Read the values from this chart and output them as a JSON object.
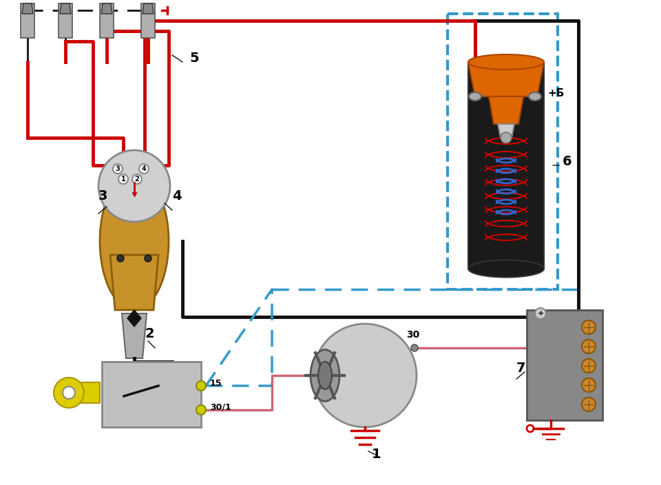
{
  "bg_color": "#f5f5f5",
  "title": "",
  "labels": {
    "1": [
      1,
      "1"
    ],
    "2": [
      2,
      "2"
    ],
    "3": [
      3,
      "3"
    ],
    "4": [
      4,
      "4"
    ],
    "5": [
      5,
      "5"
    ],
    "6": [
      6,
      "6"
    ],
    "7": [
      7,
      "7"
    ],
    "15": "15",
    "30_1": "30/1",
    "30": "30",
    "+B": "+Б"
  },
  "colors": {
    "red": "#cc0000",
    "black": "#111111",
    "blue": "#3366cc",
    "orange": "#cc6600",
    "yellow": "#ddcc00",
    "gray": "#888888",
    "darkgray": "#444444",
    "pink": "#cc6677",
    "border_blue": "#3399cc",
    "white": "#ffffff",
    "bg": "#f8f8f8"
  }
}
